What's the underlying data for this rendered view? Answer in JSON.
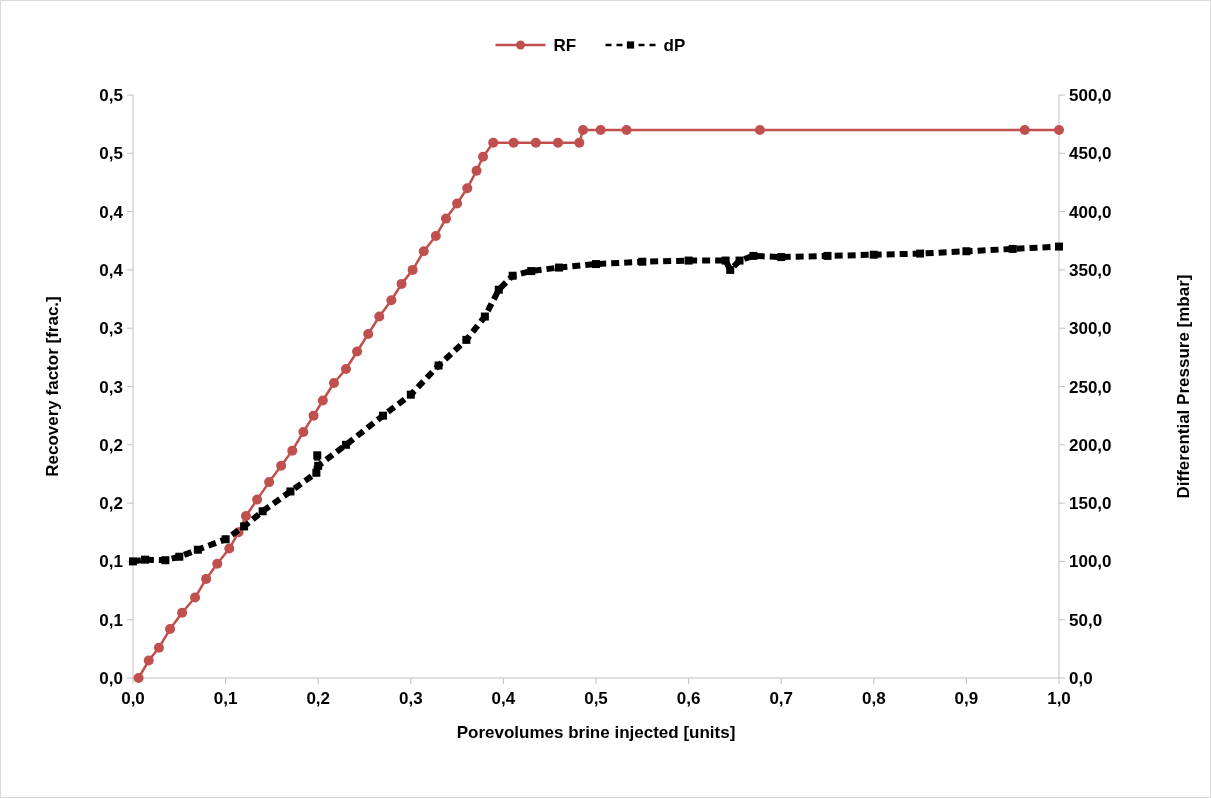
{
  "chart_data": {
    "type": "line",
    "xlabel": "Porevolumes brine injected [units]",
    "ylabel": "Recovery factor [frac.]",
    "y2label": "Differential Pressure [mbar]",
    "legend": "top",
    "grid": false,
    "xlim": [
      0,
      1
    ],
    "xticks": [
      {
        "value": 0,
        "label": "0,0"
      },
      {
        "value": 0.1,
        "label": "0,1"
      },
      {
        "value": 0.2,
        "label": "0,2"
      },
      {
        "value": 0.3,
        "label": "0,3"
      },
      {
        "value": 0.4,
        "label": "0,4"
      },
      {
        "value": 0.5,
        "label": "0,5"
      },
      {
        "value": 0.6,
        "label": "0,6"
      },
      {
        "value": 0.7,
        "label": "0,7"
      },
      {
        "value": 0.8,
        "label": "0,8"
      },
      {
        "value": 0.9,
        "label": "0,9"
      },
      {
        "value": 1,
        "label": "1,0"
      }
    ],
    "ylim": [
      0,
      0.5
    ],
    "yticks": [
      {
        "value": 0,
        "label": "0,0"
      },
      {
        "value": 0.05,
        "label": "0,1"
      },
      {
        "value": 0.1,
        "label": "0,1"
      },
      {
        "value": 0.15,
        "label": "0,2"
      },
      {
        "value": 0.2,
        "label": "0,2"
      },
      {
        "value": 0.25,
        "label": "0,3"
      },
      {
        "value": 0.3,
        "label": "0,3"
      },
      {
        "value": 0.35,
        "label": "0,4"
      },
      {
        "value": 0.4,
        "label": "0,4"
      },
      {
        "value": 0.45,
        "label": "0,5"
      },
      {
        "value": 0.5,
        "label": "0,5"
      }
    ],
    "y2lim": [
      0,
      500
    ],
    "y2ticks": [
      {
        "value": 0,
        "label": "0,0"
      },
      {
        "value": 50,
        "label": "50,0"
      },
      {
        "value": 100,
        "label": "100,0"
      },
      {
        "value": 150,
        "label": "150,0"
      },
      {
        "value": 200,
        "label": "200,0"
      },
      {
        "value": 250,
        "label": "250,0"
      },
      {
        "value": 300,
        "label": "300,0"
      },
      {
        "value": 350,
        "label": "350,0"
      },
      {
        "value": 400,
        "label": "400,0"
      },
      {
        "value": 450,
        "label": "450,0"
      },
      {
        "value": 500,
        "label": "500,0"
      }
    ],
    "series": [
      {
        "name": "RF",
        "color": "#c0504d",
        "marker": "circle",
        "line_style": "solid",
        "x": [
          0.006,
          0.017,
          0.028,
          0.04,
          0.053,
          0.067,
          0.079,
          0.091,
          0.104,
          0.114,
          0.122,
          0.134,
          0.147,
          0.16,
          0.172,
          0.184,
          0.195,
          0.205,
          0.217,
          0.23,
          0.242,
          0.254,
          0.266,
          0.279,
          0.29,
          0.302,
          0.314,
          0.327,
          0.338,
          0.35,
          0.361,
          0.371,
          0.378,
          0.389,
          0.411,
          0.435,
          0.459,
          0.482,
          0.486,
          0.505,
          0.533,
          0.677,
          0.963,
          1.0
        ],
        "values": [
          0,
          0.015,
          0.026,
          0.042,
          0.056,
          0.069,
          0.085,
          0.098,
          0.111,
          0.125,
          0.139,
          0.153,
          0.168,
          0.182,
          0.195,
          0.211,
          0.225,
          0.238,
          0.253,
          0.265,
          0.28,
          0.295,
          0.31,
          0.324,
          0.338,
          0.35,
          0.366,
          0.379,
          0.394,
          0.407,
          0.42,
          0.435,
          0.447,
          0.459,
          0.459,
          0.459,
          0.459,
          0.459,
          0.47,
          0.47,
          0.47,
          0.47,
          0.47,
          0.47
        ]
      },
      {
        "name": "dP",
        "color": "#000000",
        "axis": "y2",
        "marker": "square",
        "line_style": "dashed",
        "x": [
          0,
          0.013,
          0.035,
          0.05,
          0.07,
          0.1,
          0.12,
          0.14,
          0.17,
          0.198,
          0.199,
          0.2,
          0.23,
          0.27,
          0.3,
          0.33,
          0.36,
          0.38,
          0.395,
          0.41,
          0.43,
          0.46,
          0.5,
          0.55,
          0.6,
          0.64,
          0.645,
          0.655,
          0.67,
          0.7,
          0.75,
          0.8,
          0.85,
          0.9,
          0.95,
          1.0
        ],
        "values": [
          100,
          101.5,
          101,
          104,
          110,
          119,
          130,
          143,
          160,
          176,
          191,
          182,
          200,
          225,
          243,
          268,
          290,
          310,
          333,
          345,
          349,
          352,
          355,
          357,
          358,
          358,
          350,
          358,
          362,
          361,
          362,
          363,
          364,
          366,
          368,
          370
        ]
      }
    ]
  }
}
